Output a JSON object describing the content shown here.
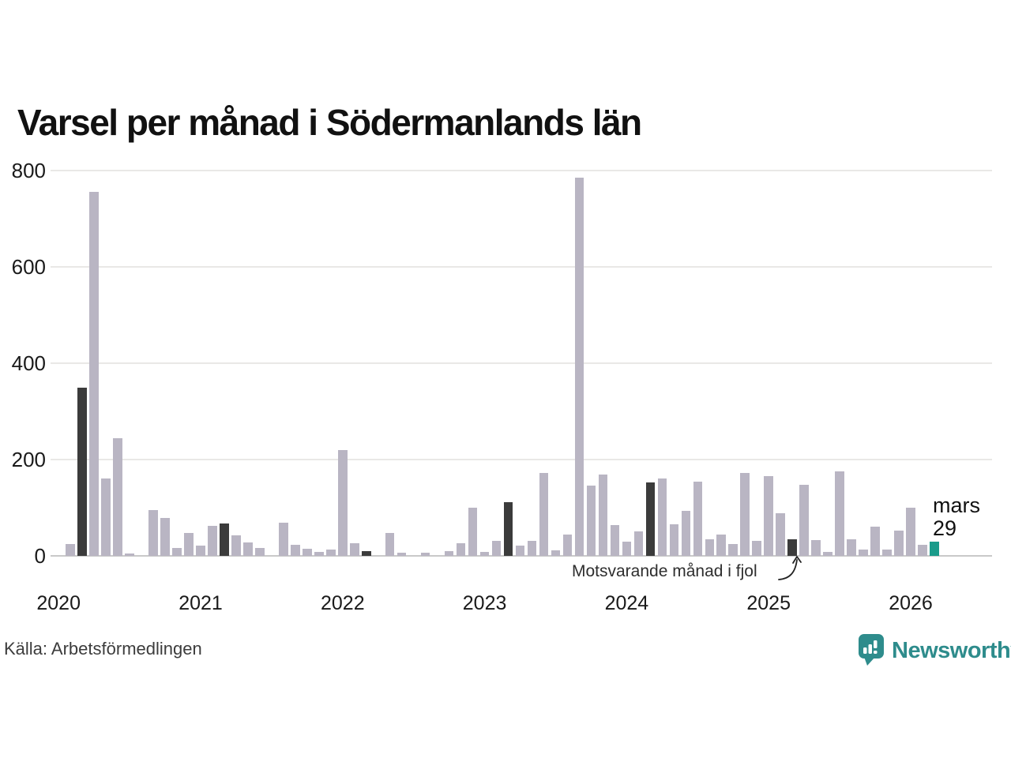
{
  "title": "Varsel per månad i Södermanlands län",
  "source": "Källa: Arbetsförmedlingen",
  "annotation": {
    "label": "Motsvarande månad i fjol"
  },
  "current_label": {
    "line1": "mars",
    "line2": "29"
  },
  "brand": {
    "name": "Newsworthy",
    "color": "#2e8c8c",
    "icon": "bar-chart-speech-bubble"
  },
  "colors": {
    "bar": "#b9b5c3",
    "highlight_prev_year": "#3b3b3b",
    "current": "#1a9b8a",
    "gridline": "#e9e8e6",
    "zero_line": "#c9c9c9"
  },
  "chart_data": {
    "type": "bar",
    "title": "Varsel per månad i Södermanlands län",
    "xlabel": "",
    "ylabel": "",
    "ylim": [
      0,
      800
    ],
    "yticks": [
      0,
      200,
      400,
      600,
      800
    ],
    "year_labels": [
      "2020",
      "2021",
      "2022",
      "2023",
      "2024",
      "2025",
      "2026"
    ],
    "grid": "horizontal",
    "legend": "none",
    "highlight_note": "dark bars = same month (mars) of earlier years; teal bar = current month",
    "points": [
      {
        "m": "2020-01",
        "v": 0,
        "s": "normal"
      },
      {
        "m": "2020-02",
        "v": 25,
        "s": "normal"
      },
      {
        "m": "2020-03",
        "v": 350,
        "s": "dark"
      },
      {
        "m": "2020-04",
        "v": 755,
        "s": "normal"
      },
      {
        "m": "2020-05",
        "v": 160,
        "s": "normal"
      },
      {
        "m": "2020-06",
        "v": 245,
        "s": "normal"
      },
      {
        "m": "2020-07",
        "v": 5,
        "s": "normal"
      },
      {
        "m": "2020-08",
        "v": 0,
        "s": "normal"
      },
      {
        "m": "2020-09",
        "v": 95,
        "s": "normal"
      },
      {
        "m": "2020-10",
        "v": 78,
        "s": "normal"
      },
      {
        "m": "2020-11",
        "v": 17,
        "s": "normal"
      },
      {
        "m": "2020-12",
        "v": 47,
        "s": "normal"
      },
      {
        "m": "2021-01",
        "v": 22,
        "s": "normal"
      },
      {
        "m": "2021-02",
        "v": 62,
        "s": "normal"
      },
      {
        "m": "2021-03",
        "v": 67,
        "s": "dark"
      },
      {
        "m": "2021-04",
        "v": 43,
        "s": "normal"
      },
      {
        "m": "2021-05",
        "v": 28,
        "s": "normal"
      },
      {
        "m": "2021-06",
        "v": 17,
        "s": "normal"
      },
      {
        "m": "2021-07",
        "v": 0,
        "s": "normal"
      },
      {
        "m": "2021-08",
        "v": 69,
        "s": "normal"
      },
      {
        "m": "2021-09",
        "v": 23,
        "s": "normal"
      },
      {
        "m": "2021-10",
        "v": 15,
        "s": "normal"
      },
      {
        "m": "2021-11",
        "v": 9,
        "s": "normal"
      },
      {
        "m": "2021-12",
        "v": 14,
        "s": "normal"
      },
      {
        "m": "2022-01",
        "v": 220,
        "s": "normal"
      },
      {
        "m": "2022-02",
        "v": 26,
        "s": "normal"
      },
      {
        "m": "2022-03",
        "v": 10,
        "s": "dark"
      },
      {
        "m": "2022-04",
        "v": 0,
        "s": "normal"
      },
      {
        "m": "2022-05",
        "v": 48,
        "s": "normal"
      },
      {
        "m": "2022-06",
        "v": 6,
        "s": "normal"
      },
      {
        "m": "2022-07",
        "v": 0,
        "s": "normal"
      },
      {
        "m": "2022-08",
        "v": 7,
        "s": "normal"
      },
      {
        "m": "2022-09",
        "v": 0,
        "s": "normal"
      },
      {
        "m": "2022-10",
        "v": 10,
        "s": "normal"
      },
      {
        "m": "2022-11",
        "v": 26,
        "s": "normal"
      },
      {
        "m": "2022-12",
        "v": 100,
        "s": "normal"
      },
      {
        "m": "2023-01",
        "v": 8,
        "s": "normal"
      },
      {
        "m": "2023-02",
        "v": 31,
        "s": "normal"
      },
      {
        "m": "2023-03",
        "v": 112,
        "s": "dark"
      },
      {
        "m": "2023-04",
        "v": 22,
        "s": "normal"
      },
      {
        "m": "2023-05",
        "v": 32,
        "s": "normal"
      },
      {
        "m": "2023-06",
        "v": 172,
        "s": "normal"
      },
      {
        "m": "2023-07",
        "v": 12,
        "s": "normal"
      },
      {
        "m": "2023-08",
        "v": 44,
        "s": "normal"
      },
      {
        "m": "2023-09",
        "v": 785,
        "s": "normal"
      },
      {
        "m": "2023-10",
        "v": 146,
        "s": "normal"
      },
      {
        "m": "2023-11",
        "v": 169,
        "s": "normal"
      },
      {
        "m": "2023-12",
        "v": 64,
        "s": "normal"
      },
      {
        "m": "2024-01",
        "v": 30,
        "s": "normal"
      },
      {
        "m": "2024-02",
        "v": 51,
        "s": "normal"
      },
      {
        "m": "2024-03",
        "v": 153,
        "s": "dark"
      },
      {
        "m": "2024-04",
        "v": 160,
        "s": "normal"
      },
      {
        "m": "2024-05",
        "v": 65,
        "s": "normal"
      },
      {
        "m": "2024-06",
        "v": 94,
        "s": "normal"
      },
      {
        "m": "2024-07",
        "v": 154,
        "s": "normal"
      },
      {
        "m": "2024-08",
        "v": 34,
        "s": "normal"
      },
      {
        "m": "2024-09",
        "v": 44,
        "s": "normal"
      },
      {
        "m": "2024-10",
        "v": 24,
        "s": "normal"
      },
      {
        "m": "2024-11",
        "v": 172,
        "s": "normal"
      },
      {
        "m": "2024-12",
        "v": 32,
        "s": "normal"
      },
      {
        "m": "2025-01",
        "v": 165,
        "s": "normal"
      },
      {
        "m": "2025-02",
        "v": 88,
        "s": "normal"
      },
      {
        "m": "2025-03",
        "v": 35,
        "s": "dark"
      },
      {
        "m": "2025-04",
        "v": 147,
        "s": "normal"
      },
      {
        "m": "2025-05",
        "v": 33,
        "s": "normal"
      },
      {
        "m": "2025-06",
        "v": 8,
        "s": "normal"
      },
      {
        "m": "2025-07",
        "v": 175,
        "s": "normal"
      },
      {
        "m": "2025-08",
        "v": 35,
        "s": "normal"
      },
      {
        "m": "2025-09",
        "v": 13,
        "s": "normal"
      },
      {
        "m": "2025-10",
        "v": 60,
        "s": "normal"
      },
      {
        "m": "2025-11",
        "v": 13,
        "s": "normal"
      },
      {
        "m": "2025-12",
        "v": 52,
        "s": "normal"
      },
      {
        "m": "2026-01",
        "v": 100,
        "s": "normal"
      },
      {
        "m": "2026-02",
        "v": 23,
        "s": "normal"
      },
      {
        "m": "2026-03",
        "v": 29,
        "s": "current"
      }
    ]
  }
}
